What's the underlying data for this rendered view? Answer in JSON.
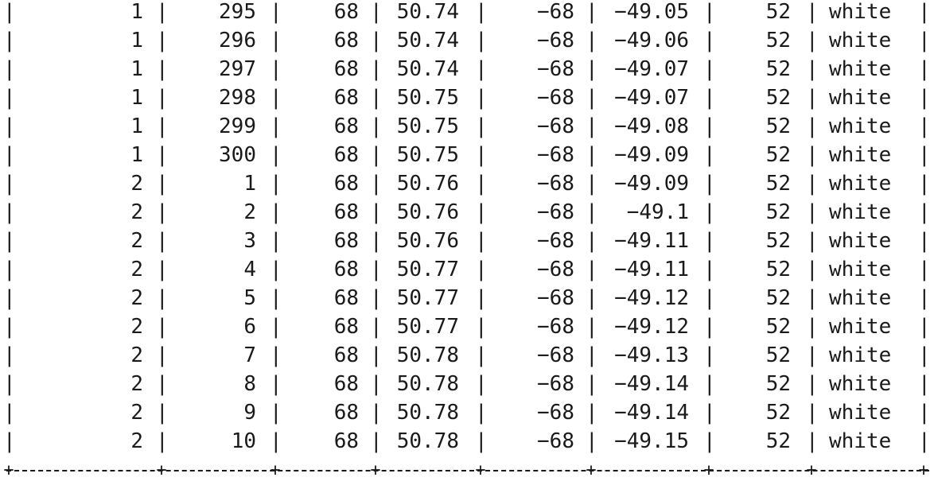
{
  "table": {
    "rows": [
      [
        "1",
        "295",
        "68",
        "50.74",
        "−68",
        "−49.05",
        "52",
        "white"
      ],
      [
        "1",
        "296",
        "68",
        "50.74",
        "−68",
        "−49.06",
        "52",
        "white"
      ],
      [
        "1",
        "297",
        "68",
        "50.74",
        "−68",
        "−49.07",
        "52",
        "white"
      ],
      [
        "1",
        "298",
        "68",
        "50.75",
        "−68",
        "−49.07",
        "52",
        "white"
      ],
      [
        "1",
        "299",
        "68",
        "50.75",
        "−68",
        "−49.08",
        "52",
        "white"
      ],
      [
        "1",
        "300",
        "68",
        "50.75",
        "−68",
        "−49.09",
        "52",
        "white"
      ],
      [
        "2",
        "1",
        "68",
        "50.76",
        "−68",
        "−49.09",
        "52",
        "white"
      ],
      [
        "2",
        "2",
        "68",
        "50.76",
        "−68",
        "−49.1",
        "52",
        "white"
      ],
      [
        "2",
        "3",
        "68",
        "50.76",
        "−68",
        "−49.11",
        "52",
        "white"
      ],
      [
        "2",
        "4",
        "68",
        "50.77",
        "−68",
        "−49.11",
        "52",
        "white"
      ],
      [
        "2",
        "5",
        "68",
        "50.77",
        "−68",
        "−49.12",
        "52",
        "white"
      ],
      [
        "2",
        "6",
        "68",
        "50.77",
        "−68",
        "−49.12",
        "52",
        "white"
      ],
      [
        "2",
        "7",
        "68",
        "50.78",
        "−68",
        "−49.13",
        "52",
        "white"
      ],
      [
        "2",
        "8",
        "68",
        "50.78",
        "−68",
        "−49.14",
        "52",
        "white"
      ],
      [
        "2",
        "9",
        "68",
        "50.78",
        "−68",
        "−49.14",
        "52",
        "white"
      ],
      [
        "2",
        "10",
        "68",
        "50.78",
        "−68",
        "−49.15",
        "52",
        "white"
      ]
    ]
  }
}
